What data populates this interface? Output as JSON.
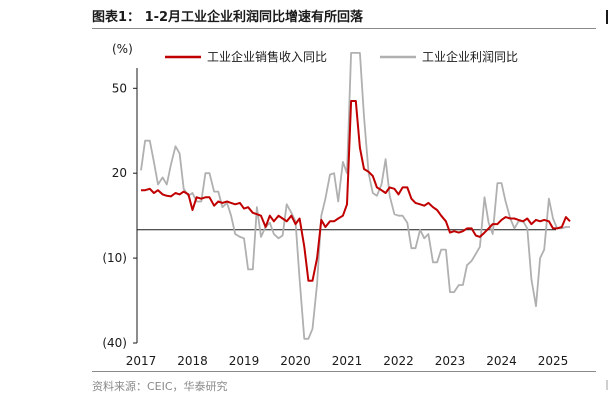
{
  "header": {
    "title": "图表1： 1-2月工业企业利润同比增速有所回落"
  },
  "footer": {
    "source": "资料来源：CEIC，华泰研究"
  },
  "chart_data": {
    "type": "line",
    "ylabel": "(%)",
    "ylim": [
      -40,
      60
    ],
    "yticks": [
      50,
      20,
      -10,
      -40
    ],
    "ytick_labels": [
      "50",
      "20",
      "(10)",
      "(40)"
    ],
    "xlim": [
      2017.0,
      2025.33
    ],
    "xticks": [
      2017,
      2018,
      2019,
      2020,
      2021,
      2022,
      2023,
      2024,
      2025
    ],
    "xtick_labels": [
      "2017",
      "2018",
      "2019",
      "2020",
      "2021",
      "2022",
      "2023",
      "2024",
      "2025"
    ],
    "legend_position": "top",
    "grid": false,
    "series": [
      {
        "name": "工业企业销售收入同比",
        "color": "#c00000",
        "points": [
          [
            2017.0,
            14.0
          ],
          [
            2017.08,
            14.0
          ],
          [
            2017.17,
            14.5
          ],
          [
            2017.25,
            13.0
          ],
          [
            2017.33,
            14.0
          ],
          [
            2017.42,
            12.5
          ],
          [
            2017.5,
            12.0
          ],
          [
            2017.58,
            11.8
          ],
          [
            2017.67,
            13.0
          ],
          [
            2017.75,
            12.5
          ],
          [
            2017.83,
            13.5
          ],
          [
            2017.92,
            12.5
          ],
          [
            2018.0,
            7.0
          ],
          [
            2018.08,
            11.5
          ],
          [
            2018.17,
            11.0
          ],
          [
            2018.25,
            11.5
          ],
          [
            2018.33,
            11.5
          ],
          [
            2018.42,
            8.5
          ],
          [
            2018.5,
            10.0
          ],
          [
            2018.58,
            9.5
          ],
          [
            2018.67,
            10.0
          ],
          [
            2018.75,
            9.5
          ],
          [
            2018.83,
            9.0
          ],
          [
            2018.92,
            9.5
          ],
          [
            2019.0,
            7.5
          ],
          [
            2019.08,
            8.0
          ],
          [
            2019.17,
            6.0
          ],
          [
            2019.25,
            5.5
          ],
          [
            2019.33,
            5.0
          ],
          [
            2019.42,
            1.0
          ],
          [
            2019.5,
            5.0
          ],
          [
            2019.58,
            3.0
          ],
          [
            2019.67,
            5.0
          ],
          [
            2019.75,
            4.0
          ],
          [
            2019.83,
            3.0
          ],
          [
            2019.92,
            5.0
          ],
          [
            2020.0,
            2.0
          ],
          [
            2020.08,
            4.0
          ],
          [
            2020.17,
            -6.0
          ],
          [
            2020.25,
            -18.0
          ],
          [
            2020.33,
            -18.0
          ],
          [
            2020.42,
            -10.0
          ],
          [
            2020.5,
            3.5
          ],
          [
            2020.58,
            1.0
          ],
          [
            2020.67,
            3.0
          ],
          [
            2020.75,
            3.0
          ],
          [
            2020.83,
            4.0
          ],
          [
            2020.92,
            5.0
          ],
          [
            2021.0,
            9.0
          ],
          [
            2021.08,
            45.5
          ],
          [
            2021.17,
            45.5
          ],
          [
            2021.25,
            29.0
          ],
          [
            2021.33,
            21.5
          ],
          [
            2021.42,
            20.5
          ],
          [
            2021.5,
            19.0
          ],
          [
            2021.58,
            15.0
          ],
          [
            2021.67,
            14.0
          ],
          [
            2021.75,
            13.0
          ],
          [
            2021.83,
            15.0
          ],
          [
            2021.92,
            14.5
          ],
          [
            2022.0,
            12.5
          ],
          [
            2022.08,
            15.0
          ],
          [
            2022.17,
            15.0
          ],
          [
            2022.25,
            11.0
          ],
          [
            2022.33,
            9.5
          ],
          [
            2022.42,
            9.0
          ],
          [
            2022.5,
            8.5
          ],
          [
            2022.58,
            9.5
          ],
          [
            2022.67,
            8.0
          ],
          [
            2022.75,
            7.0
          ],
          [
            2022.83,
            5.0
          ],
          [
            2022.92,
            3.0
          ],
          [
            2023.0,
            -1.0
          ],
          [
            2023.08,
            -0.5
          ],
          [
            2023.17,
            -1.0
          ],
          [
            2023.25,
            -0.5
          ],
          [
            2023.33,
            0.5
          ],
          [
            2023.42,
            0.5
          ],
          [
            2023.5,
            -2.0
          ],
          [
            2023.58,
            -2.5
          ],
          [
            2023.67,
            -1.0
          ],
          [
            2023.75,
            0.5
          ],
          [
            2023.83,
            2.0
          ],
          [
            2023.92,
            2.0
          ],
          [
            2024.0,
            3.5
          ],
          [
            2024.08,
            4.5
          ],
          [
            2024.17,
            4.0
          ],
          [
            2024.25,
            4.0
          ],
          [
            2024.33,
            3.5
          ],
          [
            2024.42,
            3.0
          ],
          [
            2024.5,
            4.0
          ],
          [
            2024.58,
            2.0
          ],
          [
            2024.67,
            3.5
          ],
          [
            2024.75,
            3.0
          ],
          [
            2024.83,
            3.5
          ],
          [
            2024.92,
            3.0
          ],
          [
            2025.0,
            0.5
          ],
          [
            2025.08,
            0.5
          ],
          [
            2025.17,
            1.0
          ],
          [
            2025.25,
            4.5
          ],
          [
            2025.33,
            3.0
          ]
        ]
      },
      {
        "name": "工业企业利润同比",
        "color": "#b0b0b0",
        "points": [
          [
            2017.0,
            21.0
          ],
          [
            2017.08,
            31.5
          ],
          [
            2017.17,
            31.5
          ],
          [
            2017.25,
            24.0
          ],
          [
            2017.33,
            16.0
          ],
          [
            2017.42,
            18.5
          ],
          [
            2017.5,
            16.0
          ],
          [
            2017.58,
            23.0
          ],
          [
            2017.67,
            29.5
          ],
          [
            2017.75,
            27.0
          ],
          [
            2017.83,
            14.5
          ],
          [
            2017.92,
            12.0
          ],
          [
            2018.0,
            13.0
          ],
          [
            2018.08,
            10.0
          ],
          [
            2018.17,
            10.0
          ],
          [
            2018.25,
            20.0
          ],
          [
            2018.33,
            20.0
          ],
          [
            2018.42,
            13.5
          ],
          [
            2018.5,
            13.5
          ],
          [
            2018.58,
            8.0
          ],
          [
            2018.67,
            9.5
          ],
          [
            2018.75,
            5.0
          ],
          [
            2018.83,
            -1.5
          ],
          [
            2018.92,
            -2.5
          ],
          [
            2019.0,
            -3.0
          ],
          [
            2019.08,
            -14.0
          ],
          [
            2019.17,
            -14.0
          ],
          [
            2019.25,
            8.0
          ],
          [
            2019.33,
            -2.5
          ],
          [
            2019.42,
            1.0
          ],
          [
            2019.5,
            2.5
          ],
          [
            2019.58,
            -1.5
          ],
          [
            2019.67,
            -3.0
          ],
          [
            2019.75,
            -2.0
          ],
          [
            2019.83,
            9.0
          ],
          [
            2019.92,
            6.0
          ],
          [
            2020.0,
            3.0
          ],
          [
            2020.08,
            -17.5
          ],
          [
            2020.17,
            -38.5
          ],
          [
            2020.25,
            -38.5
          ],
          [
            2020.33,
            -35.0
          ],
          [
            2020.42,
            -19.0
          ],
          [
            2020.5,
            5.0
          ],
          [
            2020.58,
            11.0
          ],
          [
            2020.67,
            19.5
          ],
          [
            2020.75,
            20.0
          ],
          [
            2020.83,
            10.0
          ],
          [
            2020.92,
            24.0
          ],
          [
            2021.0,
            20.0
          ],
          [
            2021.08,
            63.0
          ],
          [
            2021.17,
            63.0
          ],
          [
            2021.25,
            63.0
          ],
          [
            2021.33,
            40.0
          ],
          [
            2021.42,
            20.0
          ],
          [
            2021.5,
            13.0
          ],
          [
            2021.58,
            12.0
          ],
          [
            2021.67,
            16.0
          ],
          [
            2021.75,
            25.0
          ],
          [
            2021.83,
            12.0
          ],
          [
            2021.92,
            5.5
          ],
          [
            2022.0,
            5.0
          ],
          [
            2022.08,
            5.0
          ],
          [
            2022.17,
            2.5
          ],
          [
            2022.25,
            -6.5
          ],
          [
            2022.33,
            -6.5
          ],
          [
            2022.42,
            0.0
          ],
          [
            2022.5,
            -3.0
          ],
          [
            2022.58,
            -1.5
          ],
          [
            2022.67,
            -11.5
          ],
          [
            2022.75,
            -11.5
          ],
          [
            2022.83,
            -7.0
          ],
          [
            2022.92,
            -7.0
          ],
          [
            2023.0,
            -22.0
          ],
          [
            2023.08,
            -22.0
          ],
          [
            2023.17,
            -19.5
          ],
          [
            2023.25,
            -19.5
          ],
          [
            2023.33,
            -12.5
          ],
          [
            2023.42,
            -11.0
          ],
          [
            2023.5,
            -8.5
          ],
          [
            2023.58,
            -6.0
          ],
          [
            2023.67,
            11.5
          ],
          [
            2023.75,
            2.5
          ],
          [
            2023.83,
            -1.5
          ],
          [
            2023.92,
            16.5
          ],
          [
            2024.0,
            16.5
          ],
          [
            2024.08,
            10.0
          ],
          [
            2024.17,
            4.0
          ],
          [
            2024.25,
            0.5
          ],
          [
            2024.33,
            3.0
          ],
          [
            2024.42,
            3.0
          ],
          [
            2024.5,
            0.5
          ],
          [
            2024.58,
            -17.5
          ],
          [
            2024.67,
            -27.0
          ],
          [
            2024.75,
            -10.0
          ],
          [
            2024.83,
            -7.0
          ],
          [
            2024.92,
            11.0
          ],
          [
            2025.0,
            4.0
          ],
          [
            2025.08,
            0.5
          ],
          [
            2025.17,
            0.5
          ],
          [
            2025.25,
            1.0
          ],
          [
            2025.33,
            1.0
          ]
        ]
      }
    ]
  }
}
